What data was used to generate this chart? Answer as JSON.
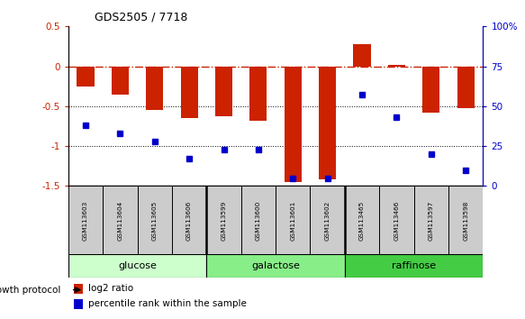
{
  "title": "GDS2505 / 7718",
  "samples": [
    "GSM113603",
    "GSM113604",
    "GSM113605",
    "GSM113606",
    "GSM113599",
    "GSM113600",
    "GSM113601",
    "GSM113602",
    "GSM113465",
    "GSM113466",
    "GSM113597",
    "GSM113598"
  ],
  "log2_ratio": [
    -0.25,
    -0.35,
    -0.55,
    -0.65,
    -0.62,
    -0.68,
    -1.45,
    -1.42,
    0.28,
    0.02,
    -0.58,
    -0.52
  ],
  "percentile_rank": [
    38,
    33,
    28,
    17,
    23,
    23,
    5,
    5,
    57,
    43,
    20,
    10
  ],
  "groups": [
    {
      "label": "glucose",
      "start": 0,
      "end": 4,
      "color": "#ccffcc"
    },
    {
      "label": "galactose",
      "start": 4,
      "end": 8,
      "color": "#88ee88"
    },
    {
      "label": "raffinose",
      "start": 8,
      "end": 12,
      "color": "#44cc44"
    }
  ],
  "ylim_left": [
    -1.5,
    0.5
  ],
  "ylim_right": [
    0,
    100
  ],
  "bar_color": "#cc2200",
  "dot_color": "#0000cc",
  "hline_color": "#cc2200",
  "dotline_color": "#000000",
  "background_color": "#ffffff",
  "growth_protocol_label": "growth protocol",
  "legend_bar": "log2 ratio",
  "legend_dot": "percentile rank within the sample"
}
